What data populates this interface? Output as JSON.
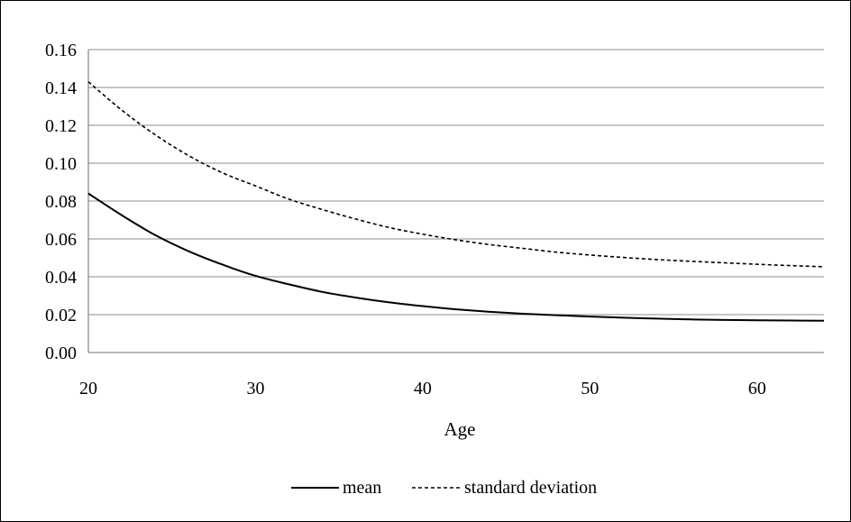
{
  "chart_data": {
    "type": "line",
    "xlabel": "Age",
    "ylabel": "",
    "title": "",
    "xlim": [
      20,
      64
    ],
    "ylim": [
      0,
      0.16
    ],
    "x_ticks": [
      20,
      30,
      40,
      50,
      60
    ],
    "x_tick_labels": [
      "20",
      "30",
      "40",
      "50",
      "60"
    ],
    "y_ticks": [
      0,
      0.02,
      0.04,
      0.06,
      0.08,
      0.1,
      0.12,
      0.14,
      0.16
    ],
    "y_tick_labels": [
      "0.00",
      "0.02",
      "0.04",
      "0.06",
      "0.08",
      "0.10",
      "0.12",
      "0.14",
      "0.16"
    ],
    "grid": "horizontal",
    "legend_position": "bottom-center",
    "series": [
      {
        "name": "mean",
        "style": "solid",
        "color": "#000000",
        "x": [
          20,
          22,
          24,
          26,
          28,
          30,
          32,
          34,
          36,
          38,
          40,
          42,
          44,
          46,
          48,
          50,
          52,
          54,
          56,
          58,
          60,
          62,
          64
        ],
        "values": [
          0.084,
          0.0725,
          0.062,
          0.0535,
          0.0465,
          0.0405,
          0.036,
          0.032,
          0.029,
          0.0265,
          0.0245,
          0.0228,
          0.0215,
          0.0205,
          0.0197,
          0.019,
          0.0184,
          0.0179,
          0.0175,
          0.0172,
          0.017,
          0.0169,
          0.0168
        ]
      },
      {
        "name": "standard deviation",
        "style": "dashed",
        "color": "#000000",
        "x": [
          20,
          22,
          24,
          26,
          28,
          30,
          32,
          34,
          36,
          38,
          40,
          42,
          44,
          46,
          48,
          50,
          52,
          54,
          56,
          58,
          60,
          62,
          64
        ],
        "values": [
          0.143,
          0.128,
          0.115,
          0.104,
          0.095,
          0.088,
          0.081,
          0.0755,
          0.0705,
          0.066,
          0.0625,
          0.0595,
          0.057,
          0.055,
          0.053,
          0.0515,
          0.0502,
          0.0491,
          0.0482,
          0.0474,
          0.0466,
          0.0459,
          0.0453
        ]
      }
    ]
  }
}
